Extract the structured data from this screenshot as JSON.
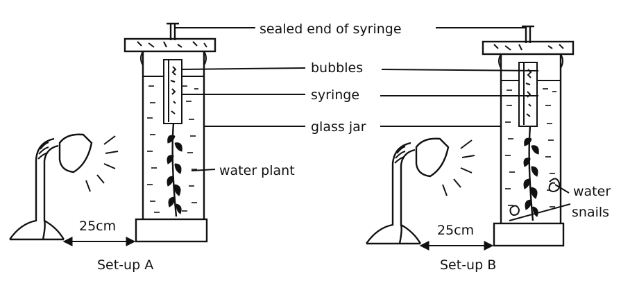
{
  "labels": {
    "sealed_end": "sealed end of syringe",
    "bubbles": "bubbles",
    "syringe": "syringe",
    "glass_jar": "glass jar",
    "water_plant": "water plant",
    "water_snails_line1": "water",
    "water_snails_line2": "snails"
  },
  "distances": {
    "a": "25cm",
    "b": "25cm"
  },
  "captions": {
    "a": "Set-up A",
    "b": "Set-up B"
  },
  "icons": [
    "desk-lamp-icon",
    "light-rays-icon",
    "water-plant-icon",
    "water-snail-icon",
    "arrow-icon"
  ]
}
